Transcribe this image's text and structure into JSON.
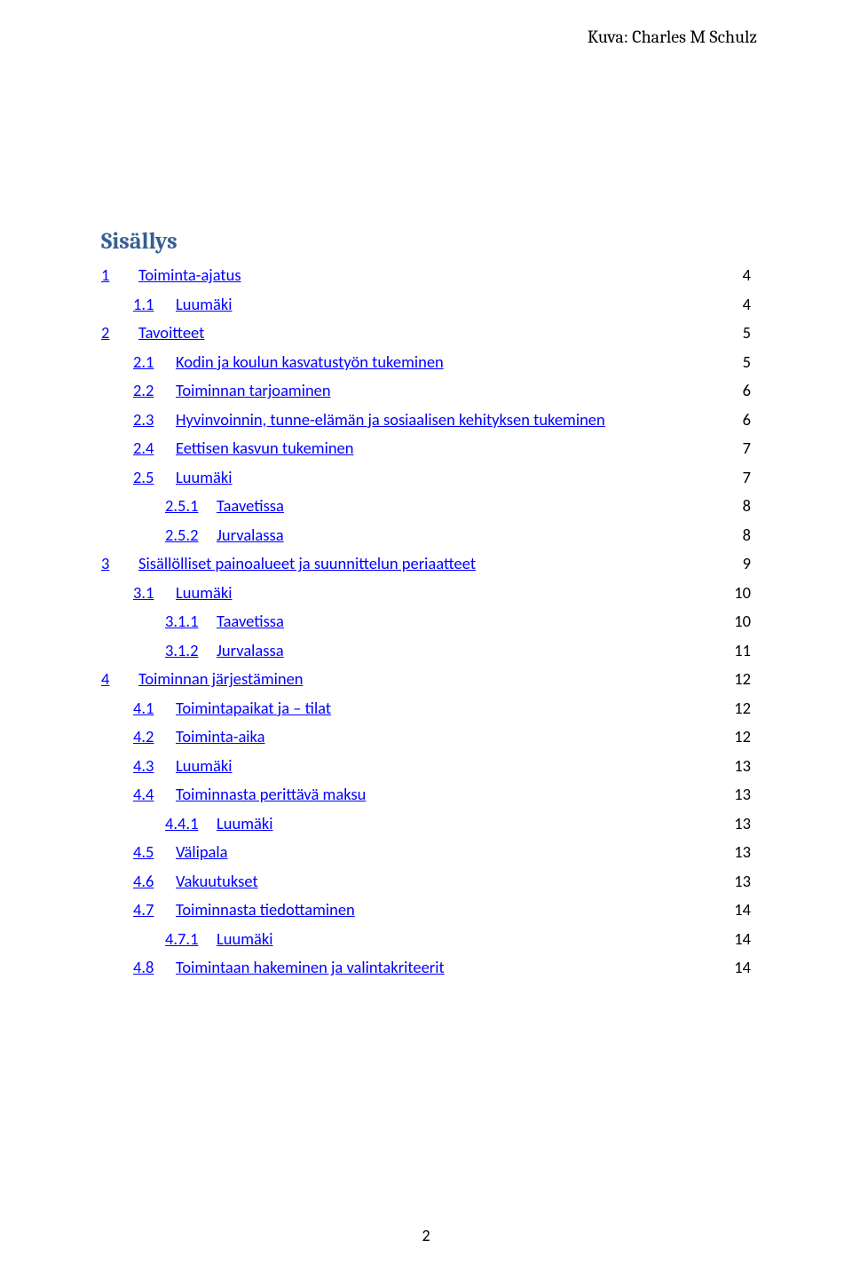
{
  "credit": "Kuva: Charles M Schulz",
  "title": "Sisällys",
  "page_number": "2",
  "colors": {
    "link": "#0000ff",
    "title": "#365f91",
    "text": "#000000",
    "background": "#ffffff"
  },
  "toc": [
    {
      "level": 1,
      "num": "1",
      "text": "Toiminta-ajatus",
      "page": "4"
    },
    {
      "level": 2,
      "num": "1.1",
      "text": "Luumäki",
      "page": "4"
    },
    {
      "level": 1,
      "num": "2",
      "text": "Tavoitteet",
      "page": "5"
    },
    {
      "level": 2,
      "num": "2.1",
      "text": "Kodin ja koulun kasvatustyön tukeminen",
      "page": "5"
    },
    {
      "level": 2,
      "num": "2.2",
      "text": "Toiminnan tarjoaminen",
      "page": "6"
    },
    {
      "level": 2,
      "num": "2.3",
      "text": "Hyvinvoinnin, tunne-elämän ja sosiaalisen kehityksen tukeminen",
      "page": "6"
    },
    {
      "level": 2,
      "num": "2.4",
      "text": "Eettisen kasvun tukeminen",
      "page": "7"
    },
    {
      "level": 2,
      "num": "2.5",
      "text": "Luumäki",
      "page": "7"
    },
    {
      "level": 3,
      "num": "2.5.1",
      "text": "Taavetissa",
      "page": "8"
    },
    {
      "level": 3,
      "num": "2.5.2",
      "text": "Jurvalassa",
      "page": "8"
    },
    {
      "level": 1,
      "num": "3",
      "text": "Sisällölliset painoalueet ja suunnittelun periaatteet",
      "page": "9"
    },
    {
      "level": 2,
      "num": "3.1",
      "text": "Luumäki",
      "page": "10"
    },
    {
      "level": 3,
      "num": "3.1.1",
      "text": "Taavetissa",
      "page": "10"
    },
    {
      "level": 3,
      "num": "3.1.2",
      "text": "Jurvalassa",
      "page": "11"
    },
    {
      "level": 1,
      "num": "4",
      "text": "Toiminnan järjestäminen",
      "page": "12"
    },
    {
      "level": 2,
      "num": "4.1",
      "text": "Toimintapaikat ja – tilat",
      "page": "12"
    },
    {
      "level": 2,
      "num": "4.2",
      "text": "Toiminta-aika",
      "page": "12"
    },
    {
      "level": 2,
      "num": "4.3",
      "text": "Luumäki",
      "page": "13"
    },
    {
      "level": 2,
      "num": "4.4",
      "text": "Toiminnasta perittävä maksu",
      "page": "13"
    },
    {
      "level": 3,
      "num": "4.4.1",
      "text": "Luumäki",
      "page": "13"
    },
    {
      "level": 2,
      "num": "4.5",
      "text": "Välipala",
      "page": "13"
    },
    {
      "level": 2,
      "num": "4.6",
      "text": "Vakuutukset",
      "page": "13"
    },
    {
      "level": 2,
      "num": "4.7",
      "text": "Toiminnasta tiedottaminen",
      "page": "14"
    },
    {
      "level": 3,
      "num": "4.7.1",
      "text": "Luumäki",
      "page": "14"
    },
    {
      "level": 2,
      "num": "4.8",
      "text": "Toimintaan hakeminen ja valintakriteerit",
      "page": "14"
    }
  ]
}
